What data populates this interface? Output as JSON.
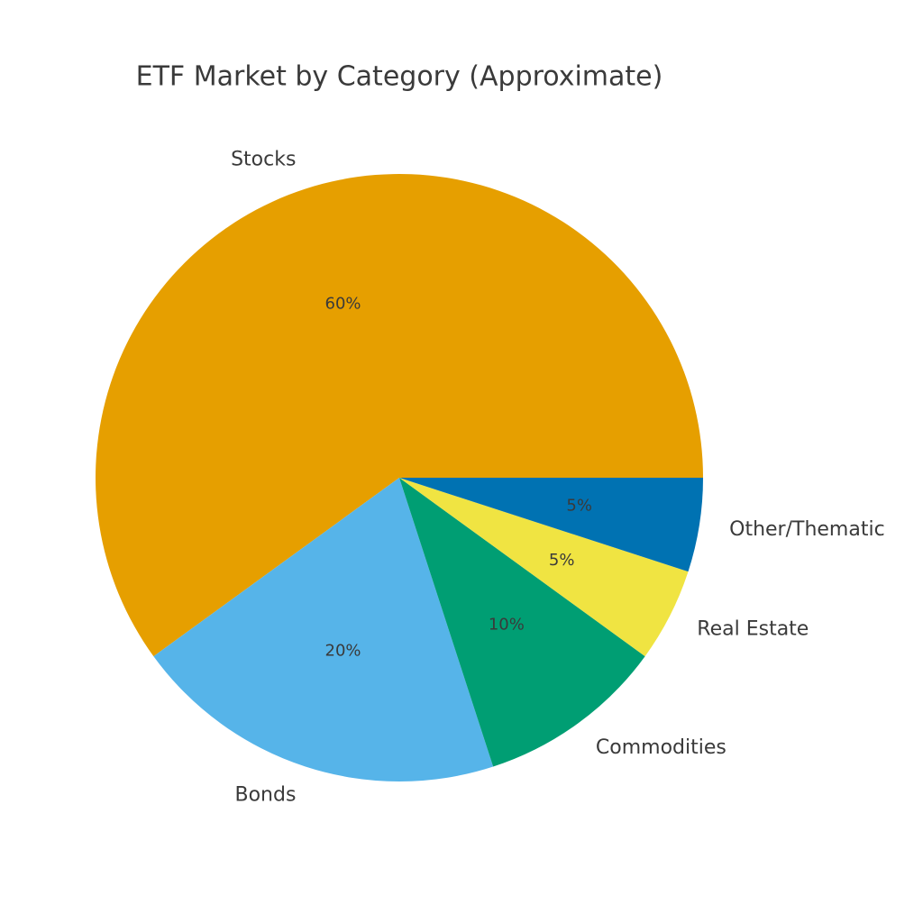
{
  "chart_data": {
    "type": "pie",
    "title": "ETF Market by Category (Approximate)",
    "categories": [
      "Stocks",
      "Bonds",
      "Commodities",
      "Real Estate",
      "Other/Thematic"
    ],
    "values": [
      60,
      20,
      10,
      5,
      5
    ],
    "value_labels": [
      "60%",
      "20%",
      "10%",
      "5%",
      "5%"
    ],
    "colors": [
      "#E69F00",
      "#56B4E9",
      "#009E73",
      "#F0E442",
      "#0072B2"
    ]
  }
}
